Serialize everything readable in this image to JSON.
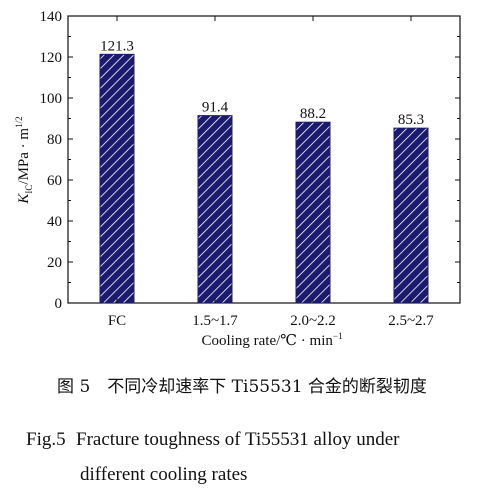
{
  "chart_data": {
    "type": "bar",
    "categories": [
      "FC",
      "1.5~1.7",
      "2.0~2.2",
      "2.5~2.7"
    ],
    "values": [
      121.3,
      91.4,
      88.2,
      85.3
    ],
    "data_labels": [
      "121.3",
      "91.4",
      "88.2",
      "85.3"
    ],
    "ylim": [
      0,
      140
    ],
    "yticks": [
      0,
      20,
      40,
      60,
      80,
      100,
      120,
      140
    ],
    "ylabel_main": "K",
    "ylabel_sub": "IC",
    "ylabel_rest": "/MPa · m",
    "ylabel_sup": "1/2",
    "xlabel_main": "Cooling rate/℃ · min",
    "xlabel_sup": "−1",
    "bar_color": "#1a1a6e",
    "hatch": "diagonal-white",
    "grid": false
  },
  "caption": {
    "cn": "图 5　不同冷却速率下 Ti55531 合金的断裂韧度",
    "en_prefix": "Fig.5",
    "en_line1": "Fracture toughness of Ti55531 alloy under",
    "en_line2": "different cooling rates"
  }
}
